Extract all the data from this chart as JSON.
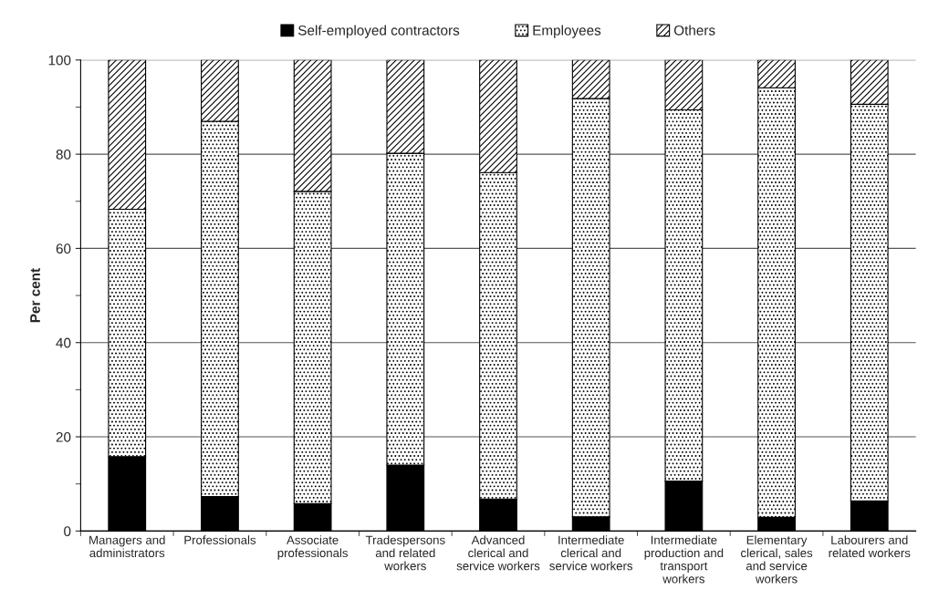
{
  "chart_data": {
    "type": "bar",
    "stacked": true,
    "ylabel": "Per cent",
    "categories": [
      "Managers and administrators",
      "Professionals",
      "Associate professionals",
      "Tradespersons and related workers",
      "Advanced clerical and service workers",
      "Intermediate clerical and service workers",
      "Intermediate production and transport workers",
      "Elementary clerical, sales and service workers",
      "Labourers and related workers"
    ],
    "series": [
      {
        "name": "Self-employed contractors",
        "color": "#000000",
        "values": [
          15.8,
          7.3,
          5.8,
          14.0,
          6.8,
          3.0,
          10.6,
          2.9,
          6.4
        ]
      },
      {
        "name": "Employees",
        "color": "#ffffff",
        "values": [
          52.5,
          79.7,
          66.3,
          66.2,
          69.3,
          88.8,
          78.8,
          91.2,
          84.2
        ]
      },
      {
        "name": "Others",
        "color": "#ffffff",
        "values": [
          31.7,
          13.0,
          27.9,
          19.8,
          23.9,
          8.2,
          10.6,
          5.9,
          9.4
        ]
      }
    ],
    "ylim": [
      0,
      100
    ],
    "yticks": [
      0,
      20,
      40,
      60,
      80,
      100
    ],
    "grid": "y",
    "legend": "top"
  }
}
